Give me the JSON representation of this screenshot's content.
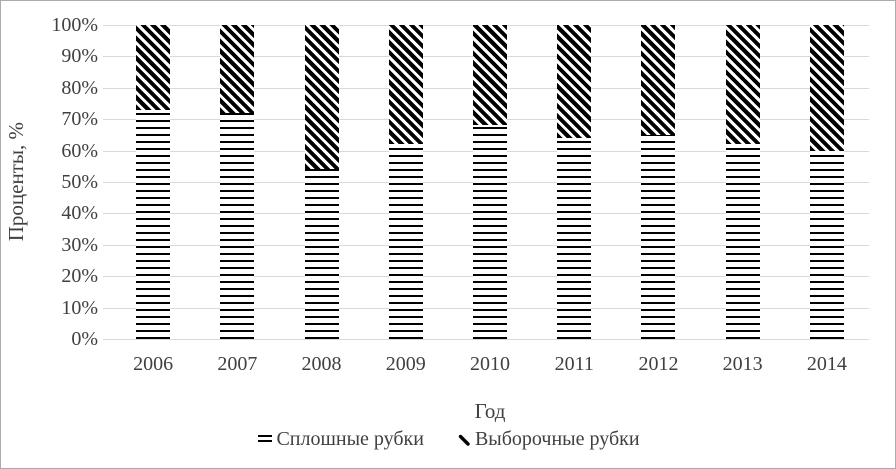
{
  "chart_data": {
    "type": "bar",
    "subtype": "stacked-100",
    "title": "",
    "categories": [
      "2006",
      "2007",
      "2008",
      "2009",
      "2010",
      "2011",
      "2012",
      "2013",
      "2014"
    ],
    "series": [
      {
        "name": "Сплошные рубки",
        "pattern": "horizontal-lines",
        "values": [
          73,
          72,
          54,
          62,
          68,
          64,
          65,
          62,
          60
        ]
      },
      {
        "name": "Выборочные рубки",
        "pattern": "diagonal-stripes",
        "values": [
          27,
          28,
          46,
          38,
          32,
          36,
          35,
          38,
          40
        ]
      }
    ],
    "xlabel": "Год",
    "ylabel": "Проценты, %",
    "ylim": [
      0,
      100
    ],
    "ytick_step": 10,
    "ytick_labels": [
      "0%",
      "10%",
      "20%",
      "30%",
      "40%",
      "50%",
      "60%",
      "70%",
      "80%",
      "90%",
      "100%"
    ],
    "grid": true,
    "legend_position": "bottom",
    "colors": {
      "pattern_foreground": "#000000",
      "pattern_background": "#ffffff",
      "text": "#404040",
      "gridline": "#d9d9d9",
      "chart_border": "#ababab",
      "background": "#ffffff"
    }
  }
}
